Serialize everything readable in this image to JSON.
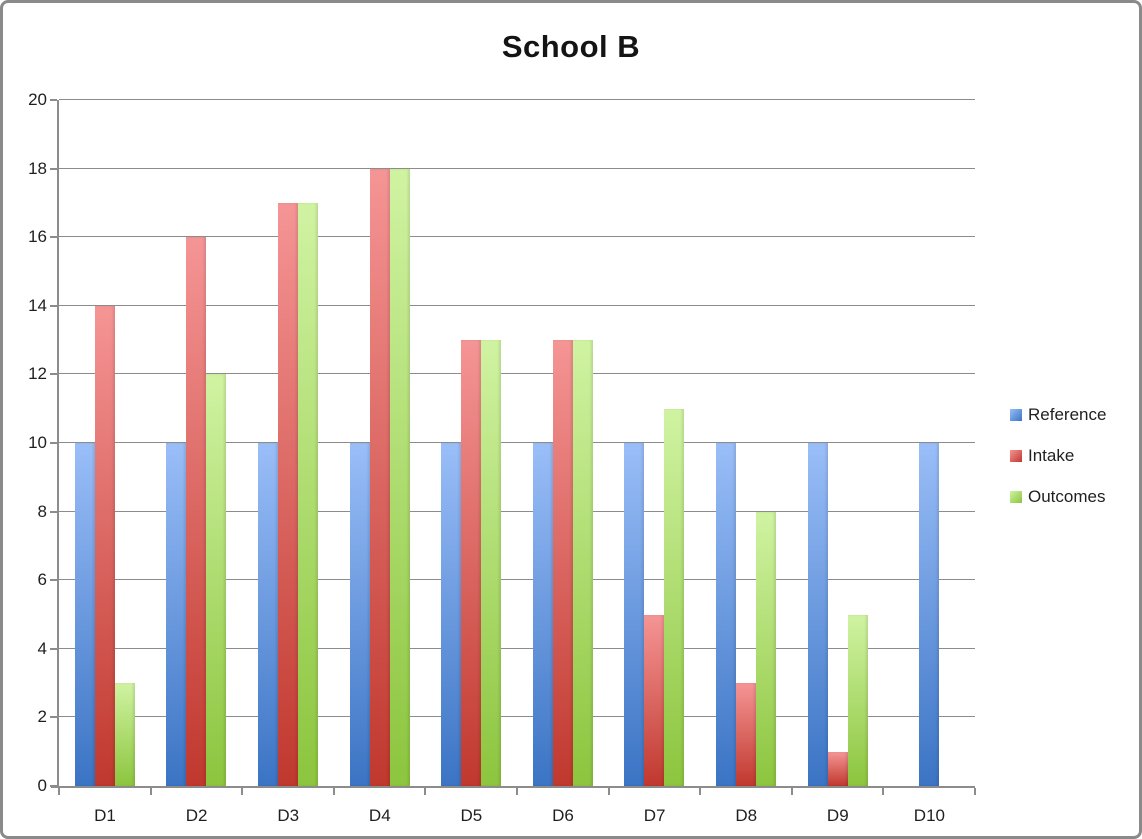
{
  "chart_data": {
    "type": "bar",
    "title": "School B",
    "categories": [
      "D1",
      "D2",
      "D3",
      "D4",
      "D5",
      "D6",
      "D7",
      "D8",
      "D9",
      "D10"
    ],
    "series": [
      {
        "name": "Reference",
        "values": [
          10,
          10,
          10,
          10,
          10,
          10,
          10,
          10,
          10,
          10
        ],
        "color_top": "#9abef8",
        "color_bottom": "#3b74c4"
      },
      {
        "name": "Intake",
        "values": [
          14,
          16,
          17,
          18,
          13,
          13,
          5,
          3,
          1,
          0
        ],
        "color_top": "#f59595",
        "color_bottom": "#c0382e"
      },
      {
        "name": "Outcomes",
        "values": [
          3,
          12,
          17,
          18,
          13,
          13,
          11,
          8,
          5,
          0
        ],
        "color_top": "#d0f3a2",
        "color_bottom": "#8cc53e"
      }
    ],
    "xlabel": "",
    "ylabel": "",
    "ylim": [
      0,
      20
    ],
    "ytick_step": 2,
    "grid": true,
    "legend_position": "right",
    "gridline_color": "#8c8c8c"
  }
}
